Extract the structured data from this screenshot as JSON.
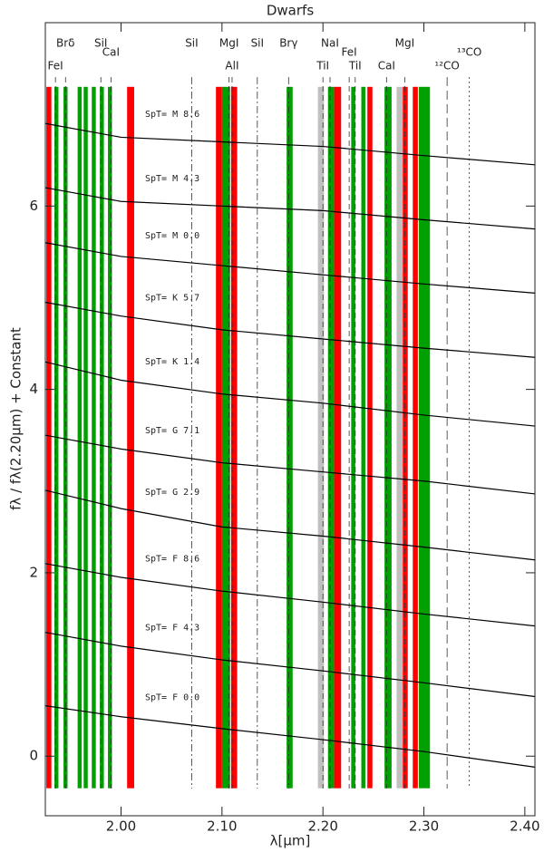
{
  "chart_data": {
    "type": "line",
    "title": "Dwarfs",
    "x_label": "λ[μm]",
    "y_label": "fλ / fλ(2.20μm) + Constant",
    "xlim": [
      1.925,
      2.41
    ],
    "ylim": [
      -0.65,
      8.0
    ],
    "xticks": [
      {
        "value": 2.0,
        "label": "2.00"
      },
      {
        "value": 2.1,
        "label": "2.10"
      },
      {
        "value": 2.2,
        "label": "2.20"
      },
      {
        "value": 2.3,
        "label": "2.30"
      },
      {
        "value": 2.4,
        "label": "2.40"
      }
    ],
    "yticks": [
      0,
      2,
      4,
      6
    ],
    "x": [
      1.925,
      2.0,
      2.1,
      2.2,
      2.3,
      2.41
    ],
    "series": [
      {
        "name": "SpT= F 0.0",
        "color": "#000000",
        "values": [
          0.55,
          0.43,
          0.3,
          0.18,
          0.05,
          -0.12
        ]
      },
      {
        "name": "SpT= F 4.3",
        "color": "#000000",
        "values": [
          1.35,
          1.2,
          1.05,
          0.93,
          0.8,
          0.65
        ]
      },
      {
        "name": "SpT= F 8.6",
        "color": "#000000",
        "values": [
          2.1,
          1.95,
          1.8,
          1.68,
          1.55,
          1.42
        ]
      },
      {
        "name": "SpT= G 2.9",
        "color": "#000000",
        "values": [
          2.9,
          2.7,
          2.5,
          2.4,
          2.28,
          2.14
        ]
      },
      {
        "name": "SpT= G 7.1",
        "color": "#000000",
        "values": [
          3.5,
          3.35,
          3.2,
          3.1,
          3.0,
          2.86
        ]
      },
      {
        "name": "SpT= K 1.4",
        "color": "#000000",
        "values": [
          4.3,
          4.1,
          3.95,
          3.85,
          3.72,
          3.6
        ]
      },
      {
        "name": "SpT= K 5.7",
        "color": "#000000",
        "values": [
          4.95,
          4.8,
          4.65,
          4.55,
          4.45,
          4.35
        ]
      },
      {
        "name": "SpT= M 0.0",
        "color": "#000000",
        "values": [
          5.6,
          5.45,
          5.35,
          5.25,
          5.15,
          5.05
        ]
      },
      {
        "name": "SpT= M 4.3",
        "color": "#000000",
        "values": [
          6.2,
          6.05,
          6.0,
          5.95,
          5.85,
          5.75
        ]
      },
      {
        "name": "SpT= M 8.6",
        "color": "#000000",
        "values": [
          6.9,
          6.75,
          6.7,
          6.65,
          6.55,
          6.45
        ]
      }
    ],
    "band_ylim": [
      -0.35,
      7.3
    ],
    "bands": [
      {
        "color": "#ff0000",
        "ranges": [
          [
            1.926,
            1.931
          ],
          [
            2.006,
            2.013
          ],
          [
            2.094,
            2.1
          ],
          [
            2.109,
            2.115
          ],
          [
            2.211,
            2.218
          ],
          [
            2.244,
            2.249
          ],
          [
            2.279,
            2.284
          ],
          [
            2.289,
            2.294
          ]
        ]
      },
      {
        "color": "#00a000",
        "ranges": [
          [
            1.934,
            1.938
          ],
          [
            1.943,
            1.947
          ],
          [
            1.957,
            1.961
          ],
          [
            1.963,
            1.967
          ],
          [
            1.971,
            1.975
          ],
          [
            1.979,
            1.983
          ],
          [
            1.987,
            1.991
          ],
          [
            2.1,
            2.108
          ],
          [
            2.164,
            2.17
          ],
          [
            2.205,
            2.211
          ],
          [
            2.228,
            2.232
          ],
          [
            2.238,
            2.242
          ],
          [
            2.261,
            2.268
          ],
          [
            2.295,
            2.306
          ]
        ]
      },
      {
        "color": "#c0c0c0",
        "ranges": [
          [
            2.195,
            2.201
          ],
          [
            2.273,
            2.279
          ]
        ]
      }
    ],
    "features": [
      {
        "label": "FeI",
        "x": 1.935,
        "style": "dash"
      },
      {
        "label": "Brδ",
        "x": 1.945,
        "style": "dash"
      },
      {
        "label": "SiI",
        "x": 1.98,
        "style": "dash"
      },
      {
        "label": "CaI",
        "x": 1.99,
        "style": "dash"
      },
      {
        "label": "SiI",
        "x": 2.07,
        "style": "dashdot"
      },
      {
        "label": "MgI",
        "x": 2.107,
        "style": "dash"
      },
      {
        "label": "AlI",
        "x": 2.11,
        "style": "dash"
      },
      {
        "label": "SiI",
        "x": 2.135,
        "style": "dashdot"
      },
      {
        "label": "Brγ",
        "x": 2.166,
        "style": "dashdot"
      },
      {
        "label": "TiI",
        "x": 2.2,
        "style": "dash"
      },
      {
        "label": "NaI",
        "x": 2.207,
        "style": "dash"
      },
      {
        "label": "FeI",
        "x": 2.226,
        "style": "dash"
      },
      {
        "label": "TiI",
        "x": 2.232,
        "style": "dash"
      },
      {
        "label": "CaI",
        "x": 2.263,
        "style": "dash"
      },
      {
        "label": "MgI",
        "x": 2.281,
        "style": "dash"
      },
      {
        "label": "¹²CO",
        "x": 2.323,
        "style": "dashdash"
      },
      {
        "label": "¹³CO",
        "x": 2.345,
        "style": "dot"
      }
    ]
  }
}
